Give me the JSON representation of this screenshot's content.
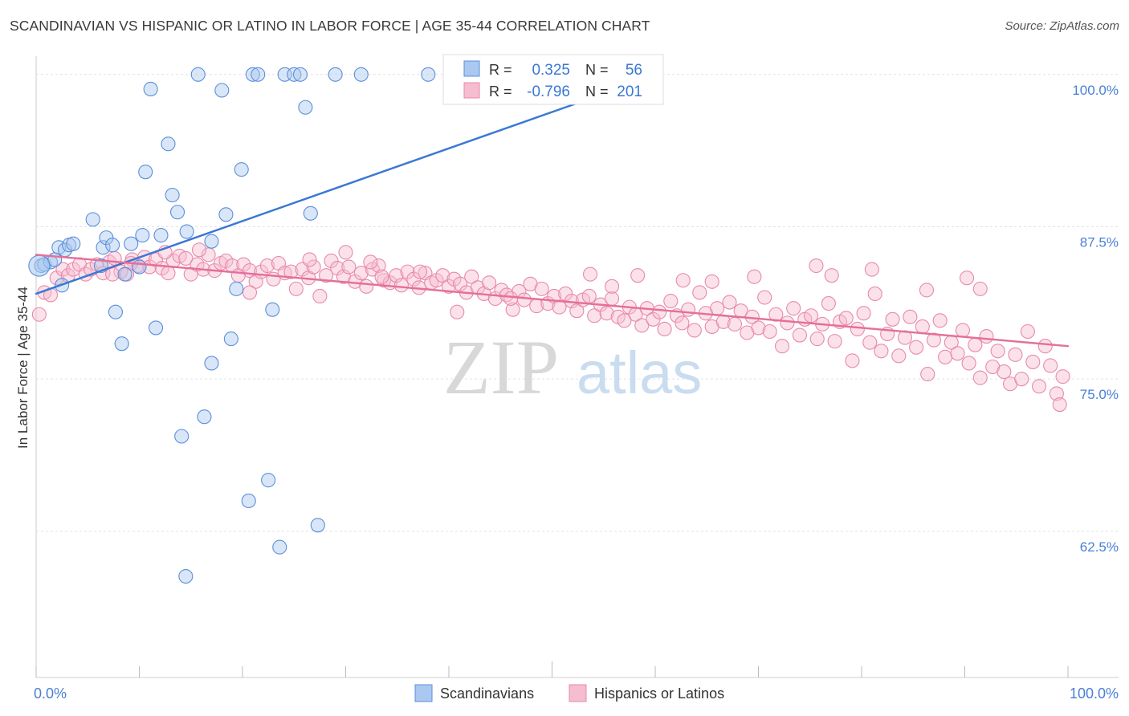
{
  "chart_data": {
    "type": "scatter",
    "title": "SCANDINAVIAN VS HISPANIC OR LATINO IN LABOR FORCE | AGE 35-44 CORRELATION CHART",
    "source": "Source: ZipAtlas.com",
    "ylabel": "In Labor Force | Age 35-44",
    "xlabel": "",
    "watermark": {
      "part1": "ZIP",
      "part2": "atlas"
    },
    "xlim": [
      0,
      100
    ],
    "ylim": [
      50.5,
      101.5
    ],
    "x_tick_labels": {
      "min": "0.0%",
      "max": "100.0%"
    },
    "y_ticks": [
      {
        "value": 100.0,
        "label": "100.0%"
      },
      {
        "value": 87.5,
        "label": "87.5%"
      },
      {
        "value": 75.0,
        "label": "75.0%"
      },
      {
        "value": 62.5,
        "label": "62.5%"
      }
    ],
    "grid": true,
    "legend_position": "top-center",
    "series": [
      {
        "name": "Scandinavians",
        "color": "#5b8fd9",
        "fill": "#aac8f0",
        "line_color": "#3a78d4",
        "R": "0.325",
        "N": "56",
        "trend": {
          "x": [
            0.0,
            60.0
          ],
          "y": [
            82.0,
            99.9
          ]
        },
        "points": [
          [
            0.5,
            84.3
          ],
          [
            0.8,
            84.4
          ],
          [
            1.4,
            84.6
          ],
          [
            1.8,
            84.8
          ],
          [
            2.2,
            85.8
          ],
          [
            2.5,
            82.7
          ],
          [
            2.8,
            85.6
          ],
          [
            3.2,
            86.0
          ],
          [
            3.6,
            86.1
          ],
          [
            5.5,
            88.1
          ],
          [
            6.3,
            84.3
          ],
          [
            6.5,
            85.8
          ],
          [
            6.8,
            86.6
          ],
          [
            7.4,
            86.0
          ],
          [
            7.7,
            80.5
          ],
          [
            8.3,
            77.9
          ],
          [
            8.6,
            83.6
          ],
          [
            9.2,
            86.1
          ],
          [
            10.0,
            84.2
          ],
          [
            10.3,
            86.8
          ],
          [
            10.6,
            92.0
          ],
          [
            11.1,
            98.8
          ],
          [
            11.6,
            79.2
          ],
          [
            12.1,
            86.8
          ],
          [
            12.8,
            94.3
          ],
          [
            13.2,
            90.1
          ],
          [
            13.7,
            88.7
          ],
          [
            14.1,
            70.3
          ],
          [
            14.6,
            87.1
          ],
          [
            15.7,
            100.0
          ],
          [
            17.0,
            86.3
          ],
          [
            18.0,
            98.7
          ],
          [
            18.4,
            88.5
          ],
          [
            18.9,
            78.3
          ],
          [
            19.4,
            82.4
          ],
          [
            19.9,
            92.2
          ],
          [
            20.6,
            65.0
          ],
          [
            21.0,
            100.0
          ],
          [
            21.5,
            100.0
          ],
          [
            22.5,
            66.7
          ],
          [
            22.9,
            80.7
          ],
          [
            23.6,
            61.2
          ],
          [
            24.1,
            100.0
          ],
          [
            25.0,
            100.0
          ],
          [
            25.6,
            100.0
          ],
          [
            26.1,
            97.3
          ],
          [
            26.6,
            88.6
          ],
          [
            27.3,
            63.0
          ],
          [
            29.0,
            100.0
          ],
          [
            31.5,
            100.0
          ],
          [
            38.0,
            100.0
          ],
          [
            46.5,
            100.0
          ],
          [
            48.0,
            100.0
          ],
          [
            14.5,
            58.8
          ],
          [
            17.0,
            76.3
          ],
          [
            16.3,
            71.9
          ]
        ]
      },
      {
        "name": "Hispanics or Latinos",
        "color": "#e88aaa",
        "fill": "#f6bcd0",
        "line_color": "#e46f9b",
        "R": "-0.796",
        "N": "201",
        "trend": {
          "x": [
            0.0,
            100.0
          ],
          "y": [
            85.2,
            77.7
          ]
        },
        "points": [
          [
            0.3,
            80.3
          ],
          [
            0.8,
            82.1
          ],
          [
            1.4,
            81.9
          ],
          [
            2.0,
            83.3
          ],
          [
            2.6,
            84.0
          ],
          [
            3.1,
            83.5
          ],
          [
            3.6,
            84.0
          ],
          [
            4.2,
            84.4
          ],
          [
            4.8,
            83.6
          ],
          [
            5.3,
            84.0
          ],
          [
            5.9,
            84.4
          ],
          [
            6.5,
            83.7
          ],
          [
            7.1,
            84.6
          ],
          [
            7.6,
            84.9
          ],
          [
            8.2,
            83.8
          ],
          [
            8.8,
            83.6
          ],
          [
            9.3,
            84.8
          ],
          [
            9.9,
            84.3
          ],
          [
            10.5,
            85.0
          ],
          [
            11.0,
            84.2
          ],
          [
            11.6,
            84.8
          ],
          [
            12.2,
            84.1
          ],
          [
            12.8,
            83.7
          ],
          [
            13.3,
            84.7
          ],
          [
            13.9,
            85.1
          ],
          [
            14.5,
            84.9
          ],
          [
            15.0,
            83.6
          ],
          [
            15.6,
            84.4
          ],
          [
            16.2,
            84.0
          ],
          [
            16.7,
            85.2
          ],
          [
            17.3,
            83.9
          ],
          [
            17.9,
            84.5
          ],
          [
            18.4,
            84.7
          ],
          [
            19.0,
            84.3
          ],
          [
            19.6,
            83.5
          ],
          [
            20.1,
            84.4
          ],
          [
            20.7,
            83.9
          ],
          [
            21.3,
            83.0
          ],
          [
            21.8,
            83.8
          ],
          [
            22.4,
            84.3
          ],
          [
            23.0,
            83.2
          ],
          [
            23.5,
            84.5
          ],
          [
            24.1,
            83.7
          ],
          [
            24.7,
            83.8
          ],
          [
            25.2,
            82.4
          ],
          [
            25.8,
            84.0
          ],
          [
            26.4,
            83.3
          ],
          [
            26.9,
            84.2
          ],
          [
            27.5,
            81.8
          ],
          [
            28.1,
            83.5
          ],
          [
            28.6,
            84.7
          ],
          [
            29.2,
            84.1
          ],
          [
            29.8,
            83.4
          ],
          [
            30.3,
            84.2
          ],
          [
            30.9,
            83.0
          ],
          [
            31.5,
            83.7
          ],
          [
            32.0,
            82.6
          ],
          [
            32.6,
            84.0
          ],
          [
            33.2,
            84.3
          ],
          [
            33.7,
            83.1
          ],
          [
            34.3,
            82.9
          ],
          [
            34.9,
            83.5
          ],
          [
            35.4,
            82.7
          ],
          [
            36.0,
            83.8
          ],
          [
            36.6,
            83.2
          ],
          [
            37.1,
            82.5
          ],
          [
            37.7,
            83.7
          ],
          [
            38.3,
            82.9
          ],
          [
            38.8,
            83.1
          ],
          [
            39.4,
            83.5
          ],
          [
            40.0,
            82.6
          ],
          [
            40.5,
            83.2
          ],
          [
            41.1,
            82.8
          ],
          [
            41.7,
            82.1
          ],
          [
            42.2,
            83.4
          ],
          [
            42.8,
            82.5
          ],
          [
            43.4,
            82.0
          ],
          [
            43.9,
            82.9
          ],
          [
            44.5,
            81.6
          ],
          [
            45.1,
            82.3
          ],
          [
            45.6,
            81.9
          ],
          [
            46.2,
            80.7
          ],
          [
            46.8,
            82.2
          ],
          [
            47.3,
            81.5
          ],
          [
            47.9,
            82.8
          ],
          [
            48.5,
            81.0
          ],
          [
            49.0,
            82.4
          ],
          [
            49.6,
            81.2
          ],
          [
            50.2,
            81.8
          ],
          [
            50.7,
            80.9
          ],
          [
            51.3,
            82.0
          ],
          [
            51.9,
            81.4
          ],
          [
            52.4,
            80.6
          ],
          [
            53.0,
            81.5
          ],
          [
            53.6,
            81.8
          ],
          [
            54.1,
            80.2
          ],
          [
            54.7,
            81.1
          ],
          [
            55.3,
            80.4
          ],
          [
            55.8,
            81.6
          ],
          [
            56.4,
            80.1
          ],
          [
            57.0,
            79.8
          ],
          [
            57.5,
            80.9
          ],
          [
            58.1,
            80.3
          ],
          [
            58.7,
            79.4
          ],
          [
            59.2,
            80.8
          ],
          [
            59.8,
            79.9
          ],
          [
            60.4,
            80.5
          ],
          [
            60.9,
            79.1
          ],
          [
            61.5,
            81.4
          ],
          [
            62.1,
            80.2
          ],
          [
            62.6,
            79.6
          ],
          [
            63.2,
            80.7
          ],
          [
            63.8,
            79.0
          ],
          [
            64.3,
            82.1
          ],
          [
            64.9,
            80.4
          ],
          [
            65.5,
            79.3
          ],
          [
            66.0,
            80.8
          ],
          [
            66.6,
            79.7
          ],
          [
            67.2,
            81.3
          ],
          [
            67.7,
            79.5
          ],
          [
            68.3,
            80.6
          ],
          [
            68.9,
            78.8
          ],
          [
            69.4,
            80.1
          ],
          [
            70.0,
            79.2
          ],
          [
            70.6,
            81.7
          ],
          [
            71.1,
            78.9
          ],
          [
            71.7,
            80.3
          ],
          [
            72.3,
            77.7
          ],
          [
            72.8,
            79.6
          ],
          [
            73.4,
            80.8
          ],
          [
            74.0,
            78.6
          ],
          [
            74.5,
            79.9
          ],
          [
            75.1,
            80.2
          ],
          [
            75.7,
            78.3
          ],
          [
            76.2,
            79.5
          ],
          [
            76.8,
            81.2
          ],
          [
            77.4,
            78.1
          ],
          [
            77.9,
            79.7
          ],
          [
            78.5,
            80.0
          ],
          [
            79.1,
            76.5
          ],
          [
            79.6,
            79.1
          ],
          [
            80.2,
            80.4
          ],
          [
            80.8,
            78.0
          ],
          [
            81.3,
            82.0
          ],
          [
            81.9,
            77.3
          ],
          [
            82.5,
            78.7
          ],
          [
            83.0,
            79.9
          ],
          [
            83.6,
            76.9
          ],
          [
            84.2,
            78.4
          ],
          [
            84.7,
            80.1
          ],
          [
            85.3,
            77.6
          ],
          [
            85.9,
            79.3
          ],
          [
            86.4,
            75.4
          ],
          [
            87.0,
            78.2
          ],
          [
            87.6,
            79.8
          ],
          [
            88.1,
            76.8
          ],
          [
            88.7,
            78.0
          ],
          [
            89.3,
            77.1
          ],
          [
            89.8,
            79.0
          ],
          [
            90.4,
            76.3
          ],
          [
            91.0,
            77.8
          ],
          [
            91.5,
            75.1
          ],
          [
            92.1,
            78.5
          ],
          [
            92.7,
            76.0
          ],
          [
            93.2,
            77.3
          ],
          [
            93.8,
            75.6
          ],
          [
            94.4,
            74.6
          ],
          [
            94.9,
            77.0
          ],
          [
            95.5,
            75.0
          ],
          [
            96.1,
            78.9
          ],
          [
            96.6,
            76.4
          ],
          [
            97.2,
            74.4
          ],
          [
            97.8,
            77.7
          ],
          [
            98.3,
            76.1
          ],
          [
            98.9,
            73.8
          ],
          [
            99.5,
            75.2
          ],
          [
            99.2,
            72.9
          ],
          [
            91.5,
            82.4
          ],
          [
            90.2,
            83.3
          ],
          [
            86.3,
            82.3
          ],
          [
            81.0,
            84.0
          ],
          [
            77.1,
            83.5
          ],
          [
            69.6,
            83.4
          ],
          [
            65.5,
            83.0
          ],
          [
            58.3,
            83.5
          ],
          [
            55.8,
            82.6
          ],
          [
            46.0,
            81.6
          ],
          [
            40.8,
            80.5
          ],
          [
            37.2,
            83.8
          ],
          [
            33.5,
            83.4
          ],
          [
            32.4,
            84.6
          ],
          [
            30.0,
            85.4
          ],
          [
            26.5,
            84.8
          ],
          [
            20.7,
            82.1
          ],
          [
            15.8,
            85.6
          ],
          [
            12.5,
            85.4
          ],
          [
            9.2,
            84.5
          ],
          [
            7.4,
            83.6
          ],
          [
            75.6,
            84.3
          ],
          [
            62.7,
            83.1
          ],
          [
            53.7,
            83.6
          ]
        ]
      }
    ]
  }
}
